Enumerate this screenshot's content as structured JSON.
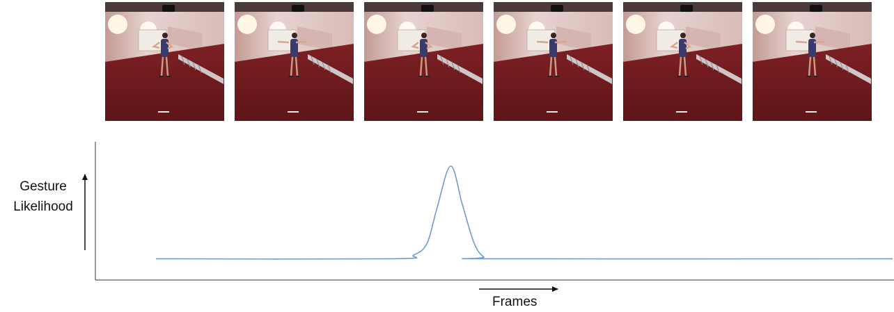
{
  "figure": {
    "ylabel_line1": "Gesture",
    "ylabel_line2": "Likelihood",
    "xlabel": "Frames",
    "curve_color": "#6f9bd0",
    "axis_color": "#333333",
    "frames": [
      {
        "content": "video-frame-person-gesturing",
        "arms": "bent"
      },
      {
        "content": "video-frame-person-gesturing",
        "arms": "extended"
      },
      {
        "content": "video-frame-person-gesturing",
        "arms": "bent"
      },
      {
        "content": "video-frame-person-gesturing",
        "arms": "extended"
      },
      {
        "content": "video-frame-person-gesturing",
        "arms": "bent"
      },
      {
        "content": "video-frame-person-gesturing",
        "arms": "extended"
      }
    ],
    "likelihood_curve": {
      "x_frame_fraction": [
        0.0,
        0.32,
        0.35,
        0.368,
        0.381,
        0.4,
        0.416,
        0.432,
        0.445,
        0.46,
        1.0
      ],
      "y_likelihood": [
        0.04,
        0.04,
        0.08,
        0.2,
        0.55,
        1.0,
        0.6,
        0.2,
        0.06,
        0.04,
        0.04
      ]
    }
  }
}
